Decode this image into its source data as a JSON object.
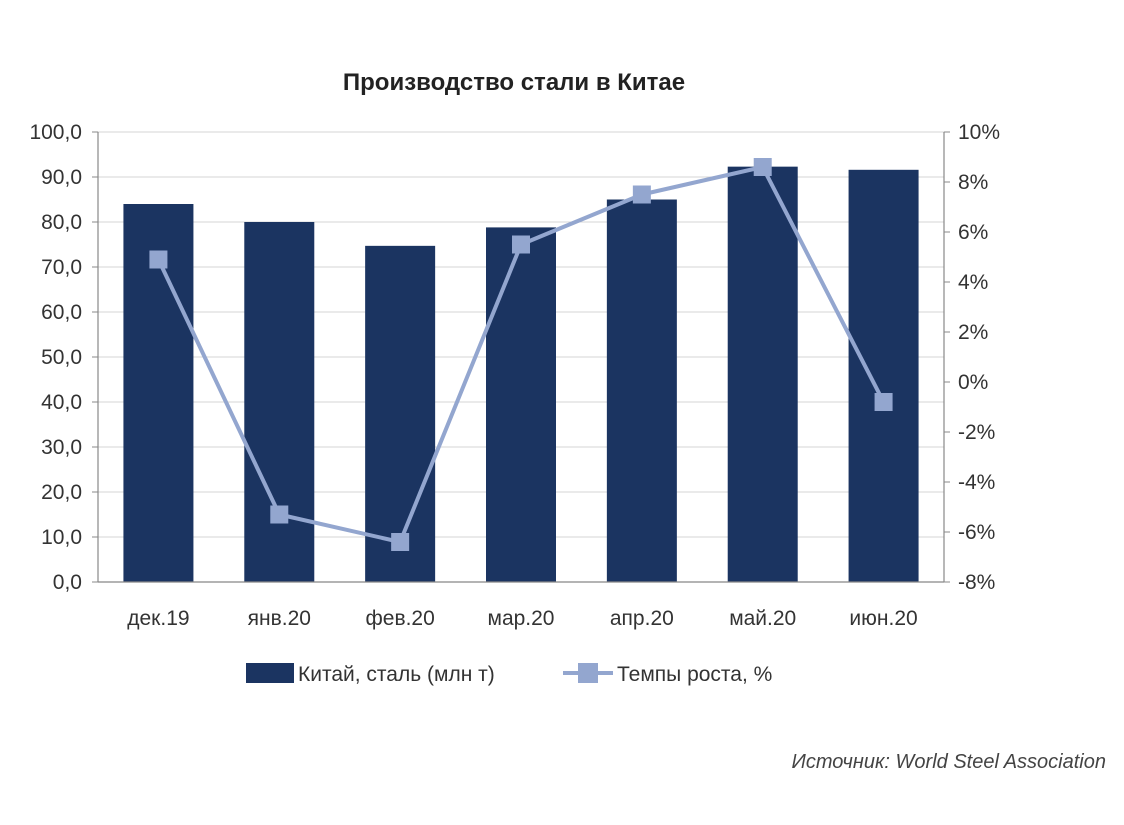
{
  "chart_data": {
    "type": "bar",
    "title": "Производство стали в Китае",
    "categories": [
      "дек.19",
      "янв.20",
      "фев.20",
      "мар.20",
      "апр.20",
      "май.20",
      "июн.20"
    ],
    "series": [
      {
        "name": "Китай, сталь (млн т)",
        "type": "bar",
        "axis": "left",
        "color": "#1b3461",
        "values": [
          84.0,
          80.0,
          74.7,
          78.8,
          85.0,
          92.3,
          91.6
        ]
      },
      {
        "name": "Темпы роста, %",
        "type": "line",
        "axis": "right",
        "color": "#93a6cf",
        "marker": "square",
        "values": [
          4.9,
          -5.3,
          -6.4,
          5.5,
          7.5,
          8.6,
          -0.8
        ]
      }
    ],
    "y_left": {
      "ylim": [
        0,
        100
      ],
      "ticks": [
        0,
        10,
        20,
        30,
        40,
        50,
        60,
        70,
        80,
        90,
        100
      ],
      "tick_labels": [
        "0,0",
        "10,0",
        "20,0",
        "30,0",
        "40,0",
        "50,0",
        "60,0",
        "70,0",
        "80,0",
        "90,0",
        "100,0"
      ]
    },
    "y_right": {
      "ylim": [
        -8,
        10
      ],
      "ticks": [
        -8,
        -6,
        -4,
        -2,
        0,
        2,
        4,
        6,
        8,
        10
      ],
      "tick_labels": [
        "-8%",
        "-6%",
        "-4%",
        "-2%",
        "0%",
        "2%",
        "4%",
        "6%",
        "8%",
        "10%"
      ]
    },
    "grid": true,
    "legend_position": "bottom"
  },
  "source_note": "Источник: World Steel Association"
}
